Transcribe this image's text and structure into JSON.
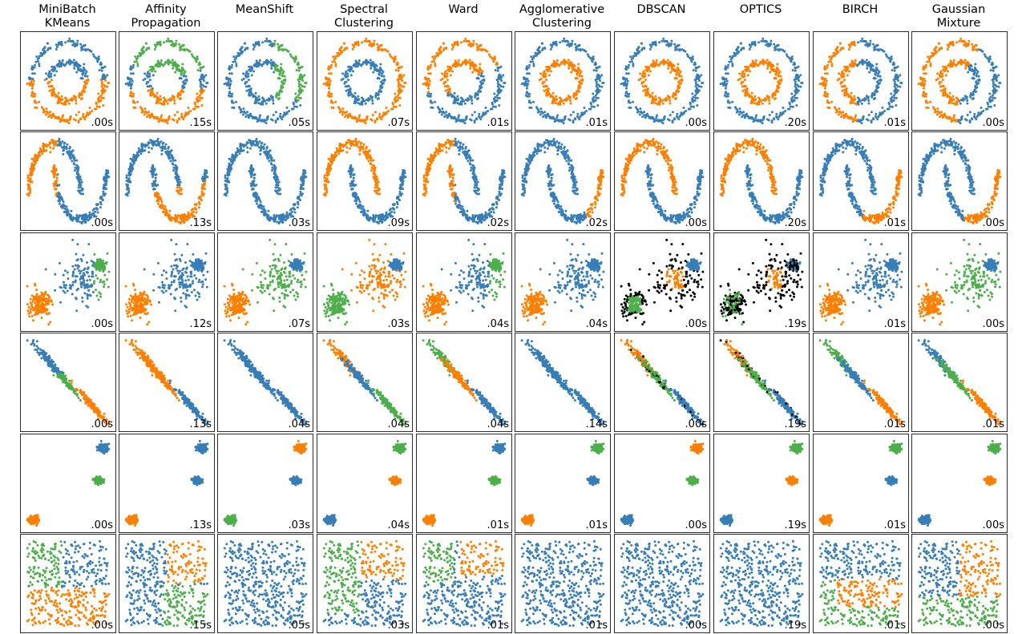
{
  "chart_data": {
    "type": "scatter",
    "algorithms": [
      "MiniBatch\nKMeans",
      "Affinity\nPropagation",
      "MeanShift",
      "Spectral\nClustering",
      "Ward",
      "Agglomerative\nClustering",
      "DBSCAN",
      "OPTICS",
      "BIRCH",
      "Gaussian\nMixture"
    ],
    "datasets": [
      "noisy_circles",
      "noisy_moons",
      "varied",
      "aniso",
      "blobs",
      "no_structure"
    ],
    "times": [
      [
        ".00s",
        ".15s",
        ".05s",
        ".07s",
        ".01s",
        ".01s",
        ".00s",
        ".20s",
        ".01s",
        ".00s"
      ],
      [
        ".00s",
        ".13s",
        ".03s",
        ".09s",
        ".02s",
        ".02s",
        ".00s",
        ".20s",
        ".01s",
        ".00s"
      ],
      [
        ".00s",
        ".12s",
        ".07s",
        ".03s",
        ".04s",
        ".04s",
        ".00s",
        ".19s",
        ".01s",
        ".00s"
      ],
      [
        ".00s",
        ".13s",
        ".04s",
        ".04s",
        ".04s",
        ".14s",
        ".00s",
        ".19s",
        ".01s",
        ".01s"
      ],
      [
        ".00s",
        ".13s",
        ".03s",
        ".04s",
        ".01s",
        ".01s",
        ".00s",
        ".19s",
        ".01s",
        ".00s"
      ],
      [
        ".00s",
        ".15s",
        ".05s",
        ".03s",
        ".01s",
        ".01s",
        ".00s",
        ".19s",
        ".01s",
        ".00s"
      ]
    ],
    "colors": {
      "blue": "#377eb8",
      "orange": "#ff7f00",
      "green": "#4daf4a",
      "pink": "#f781bf",
      "noise": "#000000"
    },
    "axes": "off",
    "grid": false
  }
}
